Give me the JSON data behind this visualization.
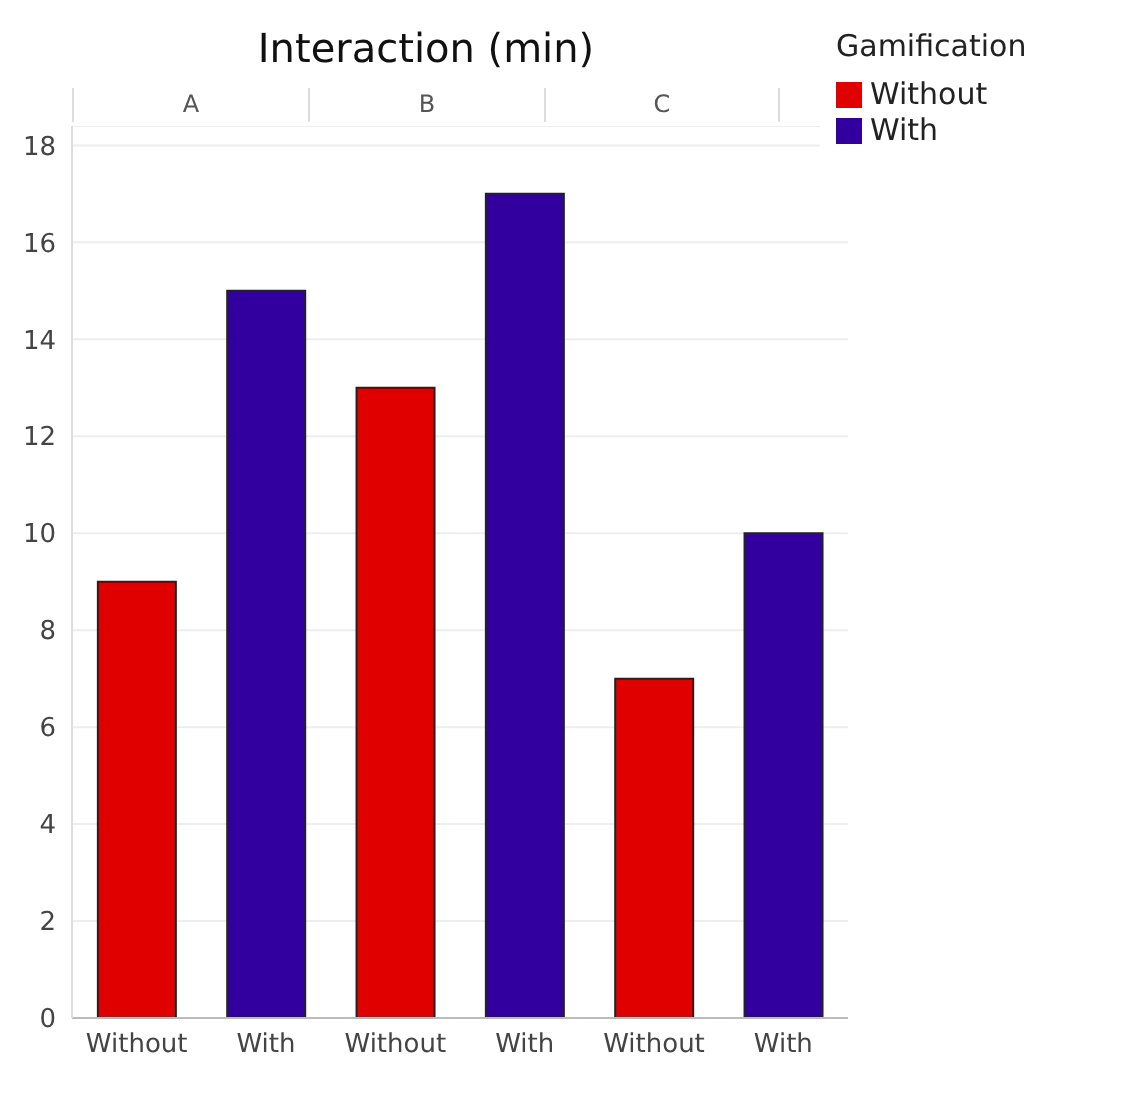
{
  "chart_data": {
    "type": "bar",
    "title": "Interaction (min)",
    "legend_title": "Gamification",
    "legend": "top right",
    "annotations": [
      "A",
      "B",
      "C"
    ],
    "categories": [
      "Without",
      "With",
      "Without",
      "With",
      "Without",
      "With"
    ],
    "stacked": true,
    "series": [
      {
        "name": "Without",
        "color": "#e00000",
        "values": [
          9,
          null,
          13,
          null,
          7,
          null
        ]
      },
      {
        "name": "With",
        "color": "#3300a0",
        "values": [
          null,
          15,
          null,
          17,
          null,
          10
        ]
      }
    ],
    "ylim": [
      0,
      18.4
    ],
    "yticks": [
      0,
      2,
      4,
      6,
      8,
      10,
      12,
      14,
      16,
      18
    ],
    "grid": "y"
  }
}
